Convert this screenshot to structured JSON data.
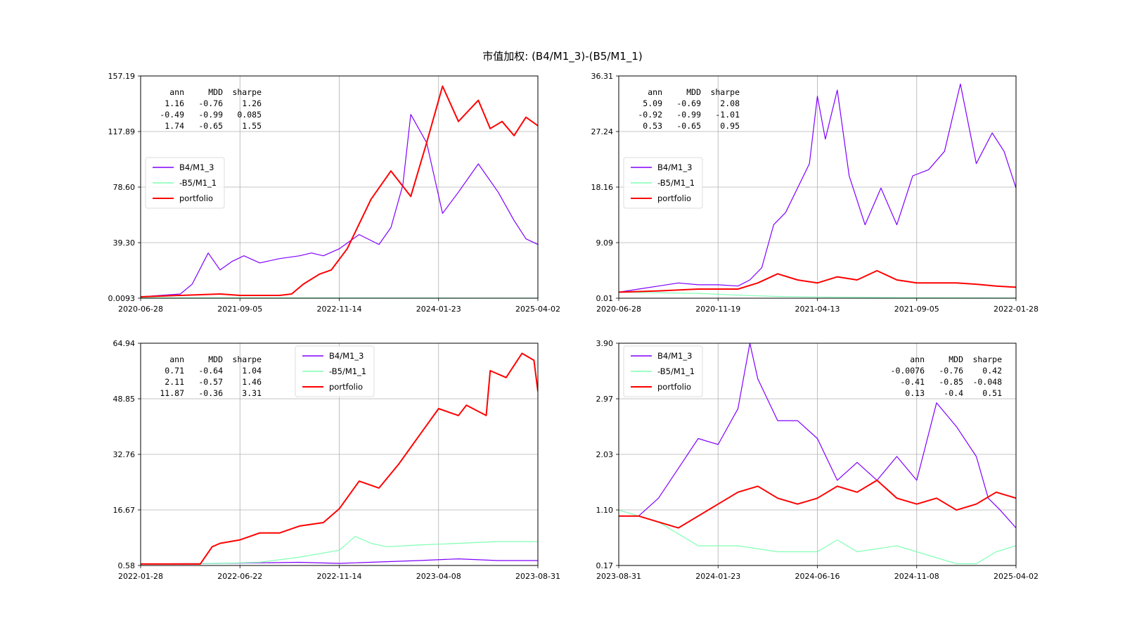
{
  "figure_title": "市值加权: (B4/M1_3)-(B5/M1_1)",
  "colors": {
    "B4/M1_3": "#8000ff",
    "-B5/M1_1": "#80ffb4",
    "portfolio": "#ff0000"
  },
  "chart_data": [
    {
      "type": "line",
      "ytick_labels": [
        "0.0093",
        "39.30",
        "78.60",
        "117.89",
        "157.19"
      ],
      "ylim": [
        0.0093,
        157.19
      ],
      "xtick_labels": [
        "2020-06-28",
        "2021-09-05",
        "2022-11-14",
        "2024-01-23",
        "2025-04-02"
      ],
      "legend_loc": "center-left",
      "stats": {
        "header": [
          "ann",
          "MDD",
          "sharpe"
        ],
        "rows": [
          [
            "1.16",
            "-0.76",
            "1.26"
          ],
          [
            "-0.49",
            "-0.99",
            "0.085"
          ],
          [
            "1.74",
            "-0.65",
            "1.55"
          ]
        ],
        "loc": "top-left"
      },
      "series": [
        {
          "name": "B4/M1_3",
          "x": [
            0,
            0.05,
            0.1,
            0.13,
            0.17,
            0.2,
            0.23,
            0.26,
            0.3,
            0.35,
            0.4,
            0.43,
            0.46,
            0.5,
            0.55,
            0.6,
            0.63,
            0.66,
            0.68,
            0.72,
            0.76,
            0.8,
            0.85,
            0.9,
            0.94,
            0.97,
            1
          ],
          "y": [
            1,
            2,
            3,
            10,
            32,
            20,
            26,
            30,
            25,
            28,
            30,
            32,
            30,
            35,
            45,
            38,
            50,
            80,
            130,
            110,
            60,
            75,
            95,
            75,
            55,
            42,
            38
          ]
        },
        {
          "name": "-B5/M1_1",
          "x": [
            0,
            0.5,
            1
          ],
          "y": [
            0.3,
            0.2,
            0.1
          ]
        },
        {
          "name": "portfolio",
          "x": [
            0,
            0.1,
            0.2,
            0.25,
            0.3,
            0.35,
            0.38,
            0.41,
            0.45,
            0.48,
            0.52,
            0.58,
            0.63,
            0.68,
            0.72,
            0.76,
            0.8,
            0.85,
            0.88,
            0.91,
            0.94,
            0.97,
            1
          ],
          "y": [
            1,
            2,
            3,
            2,
            2,
            2,
            3,
            10,
            17,
            20,
            35,
            70,
            90,
            72,
            110,
            150,
            125,
            140,
            120,
            125,
            115,
            128,
            122
          ]
        }
      ]
    },
    {
      "type": "line",
      "ytick_labels": [
        "0.01",
        "9.09",
        "18.16",
        "27.24",
        "36.31"
      ],
      "ylim": [
        0.01,
        36.31
      ],
      "xtick_labels": [
        "2020-06-28",
        "2020-11-19",
        "2021-04-13",
        "2021-09-05",
        "2022-01-28"
      ],
      "legend_loc": "center-left",
      "stats": {
        "header": [
          "ann",
          "MDD",
          "sharpe"
        ],
        "rows": [
          [
            "5.09",
            "-0.69",
            "2.08"
          ],
          [
            "-0.92",
            "-0.99",
            "-1.01"
          ],
          [
            "0.53",
            "-0.65",
            "0.95"
          ]
        ],
        "loc": "top-left"
      },
      "series": [
        {
          "name": "B4/M1_3",
          "x": [
            0,
            0.05,
            0.1,
            0.15,
            0.2,
            0.25,
            0.3,
            0.33,
            0.36,
            0.39,
            0.42,
            0.45,
            0.48,
            0.5,
            0.52,
            0.55,
            0.58,
            0.62,
            0.66,
            0.7,
            0.74,
            0.78,
            0.82,
            0.86,
            0.9,
            0.94,
            0.97,
            1
          ],
          "y": [
            1,
            1.5,
            2,
            2.5,
            2.2,
            2.2,
            2,
            3,
            5,
            12,
            14,
            18,
            22,
            33,
            26,
            34,
            20,
            12,
            18,
            12,
            20,
            21,
            24,
            35,
            22,
            27,
            24,
            18
          ]
        },
        {
          "name": "-B5/M1_1",
          "x": [
            0,
            0.1,
            0.2,
            0.3,
            0.4,
            0.5,
            0.7,
            1
          ],
          "y": [
            1,
            0.9,
            0.8,
            0.5,
            0.3,
            0.2,
            0.1,
            0.05
          ]
        },
        {
          "name": "portfolio",
          "x": [
            0,
            0.1,
            0.2,
            0.3,
            0.35,
            0.4,
            0.45,
            0.5,
            0.55,
            0.6,
            0.65,
            0.7,
            0.75,
            0.8,
            0.85,
            0.9,
            0.95,
            1
          ],
          "y": [
            1,
            1.2,
            1.5,
            1.5,
            2.5,
            4,
            3,
            2.5,
            3.5,
            3,
            4.5,
            3,
            2.5,
            2.5,
            2.5,
            2.3,
            2,
            1.8
          ]
        }
      ]
    },
    {
      "type": "line",
      "ytick_labels": [
        "0.58",
        "16.67",
        "32.76",
        "48.85",
        "64.94"
      ],
      "ylim": [
        0.58,
        64.94
      ],
      "xtick_labels": [
        "2022-01-28",
        "2022-06-22",
        "2022-11-14",
        "2023-04-08",
        "2023-08-31"
      ],
      "legend_loc": "top-center",
      "stats": {
        "header": [
          "ann",
          "MDD",
          "sharpe"
        ],
        "rows": [
          [
            "0.71",
            "-0.64",
            "1.04"
          ],
          [
            "2.11",
            "-0.57",
            "1.46"
          ],
          [
            "11.87",
            "-0.36",
            "3.31"
          ]
        ],
        "loc": "top-left"
      },
      "series": [
        {
          "name": "B4/M1_3",
          "x": [
            0,
            0.2,
            0.4,
            0.5,
            0.7,
            0.8,
            0.9,
            1
          ],
          "y": [
            1,
            1.2,
            1.5,
            1.2,
            2,
            2.5,
            2,
            2
          ]
        },
        {
          "name": "-B5/M1_1",
          "x": [
            0,
            0.2,
            0.3,
            0.4,
            0.5,
            0.54,
            0.58,
            0.62,
            0.7,
            0.8,
            0.9,
            1
          ],
          "y": [
            1,
            1.2,
            1.5,
            3,
            5,
            9,
            7,
            6,
            6.5,
            7,
            7.5,
            7.5
          ]
        },
        {
          "name": "portfolio",
          "x": [
            0,
            0.15,
            0.18,
            0.2,
            0.25,
            0.3,
            0.35,
            0.4,
            0.46,
            0.5,
            0.55,
            0.6,
            0.65,
            0.7,
            0.75,
            0.8,
            0.82,
            0.87,
            0.88,
            0.92,
            0.96,
            0.99,
            1
          ],
          "y": [
            1,
            1,
            6,
            7,
            8,
            10,
            10,
            12,
            13,
            17,
            25,
            23,
            30,
            38,
            46,
            44,
            47,
            44,
            57,
            55,
            62,
            60,
            51
          ]
        }
      ]
    },
    {
      "type": "line",
      "ytick_labels": [
        "0.17",
        "1.10",
        "2.03",
        "2.97",
        "3.90"
      ],
      "ylim": [
        0.17,
        3.9
      ],
      "xtick_labels": [
        "2023-08-31",
        "2024-01-23",
        "2024-06-16",
        "2024-11-08",
        "2025-04-02"
      ],
      "legend_loc": "top-left",
      "stats": {
        "header": [
          "ann",
          "MDD",
          "sharpe"
        ],
        "rows": [
          [
            "-0.0076",
            "-0.76",
            "0.42"
          ],
          [
            "-0.41",
            "-0.85",
            "-0.048"
          ],
          [
            "0.13",
            "-0.4",
            "0.51"
          ]
        ],
        "loc": "top-right"
      },
      "series": [
        {
          "name": "B4/M1_3",
          "x": [
            0,
            0.05,
            0.1,
            0.15,
            0.2,
            0.25,
            0.3,
            0.33,
            0.35,
            0.4,
            0.45,
            0.5,
            0.55,
            0.6,
            0.65,
            0.7,
            0.75,
            0.8,
            0.85,
            0.9,
            0.93,
            0.96,
            1
          ],
          "y": [
            1,
            1,
            1.3,
            1.8,
            2.3,
            2.2,
            2.8,
            3.9,
            3.3,
            2.6,
            2.6,
            2.3,
            1.6,
            1.9,
            1.6,
            2,
            1.6,
            2.9,
            2.5,
            2,
            1.3,
            1.1,
            0.8
          ]
        },
        {
          "name": "-B5/M1_1",
          "x": [
            0,
            0.05,
            0.1,
            0.2,
            0.3,
            0.4,
            0.5,
            0.55,
            0.6,
            0.7,
            0.75,
            0.8,
            0.85,
            0.9,
            0.95,
            1
          ],
          "y": [
            1.1,
            1,
            0.9,
            0.5,
            0.5,
            0.4,
            0.4,
            0.6,
            0.4,
            0.5,
            0.4,
            0.3,
            0.2,
            0.2,
            0.4,
            0.5
          ]
        },
        {
          "name": "portfolio",
          "x": [
            0,
            0.05,
            0.1,
            0.15,
            0.2,
            0.25,
            0.3,
            0.35,
            0.4,
            0.45,
            0.5,
            0.55,
            0.6,
            0.65,
            0.7,
            0.75,
            0.8,
            0.85,
            0.9,
            0.95,
            1
          ],
          "y": [
            1,
            1,
            0.9,
            0.8,
            1,
            1.2,
            1.4,
            1.5,
            1.3,
            1.2,
            1.3,
            1.5,
            1.4,
            1.6,
            1.3,
            1.2,
            1.3,
            1.1,
            1.2,
            1.4,
            1.3
          ]
        }
      ]
    }
  ]
}
